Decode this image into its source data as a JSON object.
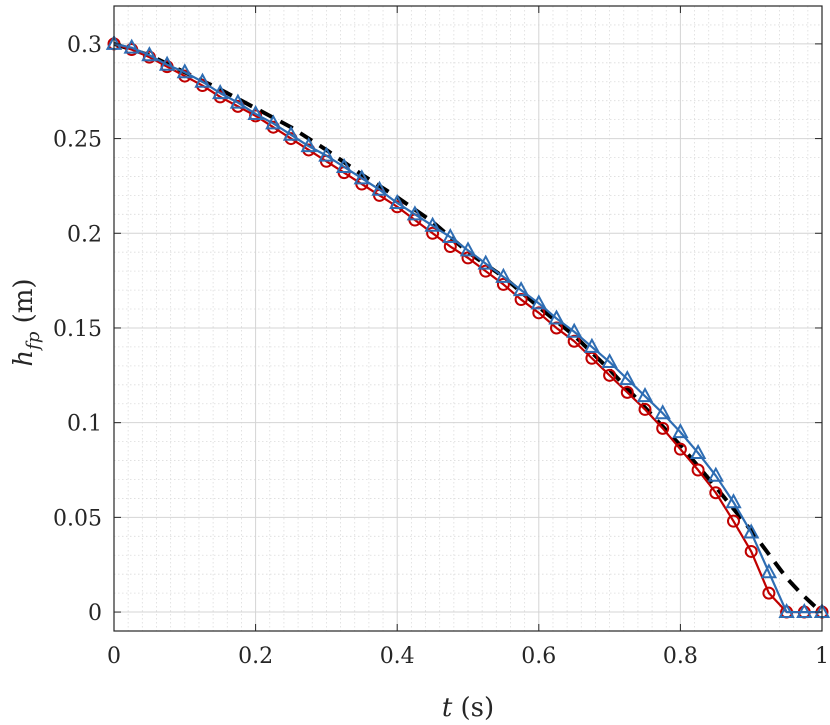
{
  "chart_data": {
    "type": "line",
    "title": "",
    "xlabel": "t (s)",
    "ylabel": "h_fp (m)",
    "xlim": [
      0,
      1
    ],
    "ylim": [
      -0.01,
      0.32
    ],
    "x_ticks": [
      0,
      0.2,
      0.4,
      0.6,
      0.8,
      1
    ],
    "x_tick_labels": [
      "0",
      "0.2",
      "0.4",
      "0.6",
      "0.8",
      "1"
    ],
    "y_ticks": [
      0,
      0.05,
      0.1,
      0.15,
      0.2,
      0.25,
      0.3
    ],
    "y_tick_labels": [
      "0",
      "0.05",
      "0.1",
      "0.15",
      "0.2",
      "0.25",
      "0.3"
    ],
    "grid": true,
    "minor_grid": true,
    "legend": false,
    "series": [
      {
        "color": "#000000",
        "style": "dashed",
        "marker": "none",
        "x": [
          0,
          0.05,
          0.1,
          0.15,
          0.2,
          0.25,
          0.3,
          0.35,
          0.4,
          0.45,
          0.5,
          0.55,
          0.6,
          0.65,
          0.7,
          0.75,
          0.8,
          0.85,
          0.9,
          0.93,
          0.95,
          0.97,
          0.99,
          1.0
        ],
        "y": [
          0.3,
          0.294,
          0.285,
          0.276,
          0.266,
          0.256,
          0.244,
          0.231,
          0.219,
          0.206,
          0.19,
          0.177,
          0.161,
          0.146,
          0.128,
          0.108,
          0.088,
          0.066,
          0.043,
          0.028,
          0.018,
          0.01,
          0.003,
          0.0
        ]
      },
      {
        "color": "#c00000",
        "style": "solid",
        "marker": "circle",
        "x": [
          0,
          0.025,
          0.05,
          0.075,
          0.1,
          0.125,
          0.15,
          0.175,
          0.2,
          0.225,
          0.25,
          0.275,
          0.3,
          0.325,
          0.35,
          0.375,
          0.4,
          0.425,
          0.45,
          0.475,
          0.5,
          0.525,
          0.55,
          0.575,
          0.6,
          0.625,
          0.65,
          0.675,
          0.7,
          0.725,
          0.75,
          0.775,
          0.8,
          0.825,
          0.85,
          0.875,
          0.9,
          0.925,
          0.95,
          0.975,
          1.0
        ],
        "y": [
          0.3,
          0.297,
          0.293,
          0.288,
          0.283,
          0.278,
          0.272,
          0.267,
          0.262,
          0.256,
          0.25,
          0.244,
          0.238,
          0.232,
          0.226,
          0.22,
          0.214,
          0.207,
          0.2,
          0.193,
          0.187,
          0.18,
          0.173,
          0.165,
          0.158,
          0.15,
          0.143,
          0.134,
          0.125,
          0.116,
          0.107,
          0.097,
          0.086,
          0.075,
          0.063,
          0.048,
          0.032,
          0.01,
          0.0,
          0.0,
          0.0
        ]
      },
      {
        "color": "#2e6db3",
        "style": "solid",
        "marker": "triangle",
        "x": [
          0,
          0.025,
          0.05,
          0.075,
          0.1,
          0.125,
          0.15,
          0.175,
          0.2,
          0.225,
          0.25,
          0.275,
          0.3,
          0.325,
          0.35,
          0.375,
          0.4,
          0.425,
          0.45,
          0.475,
          0.5,
          0.525,
          0.55,
          0.575,
          0.6,
          0.625,
          0.65,
          0.675,
          0.7,
          0.725,
          0.75,
          0.775,
          0.8,
          0.825,
          0.85,
          0.875,
          0.9,
          0.925,
          0.95,
          0.975,
          1.0
        ],
        "y": [
          0.3,
          0.298,
          0.294,
          0.289,
          0.285,
          0.28,
          0.274,
          0.269,
          0.263,
          0.258,
          0.252,
          0.246,
          0.241,
          0.235,
          0.229,
          0.223,
          0.216,
          0.21,
          0.204,
          0.198,
          0.191,
          0.184,
          0.177,
          0.17,
          0.163,
          0.155,
          0.148,
          0.14,
          0.132,
          0.123,
          0.114,
          0.105,
          0.095,
          0.084,
          0.072,
          0.058,
          0.042,
          0.021,
          0.0,
          0.0,
          0.0
        ]
      }
    ]
  }
}
